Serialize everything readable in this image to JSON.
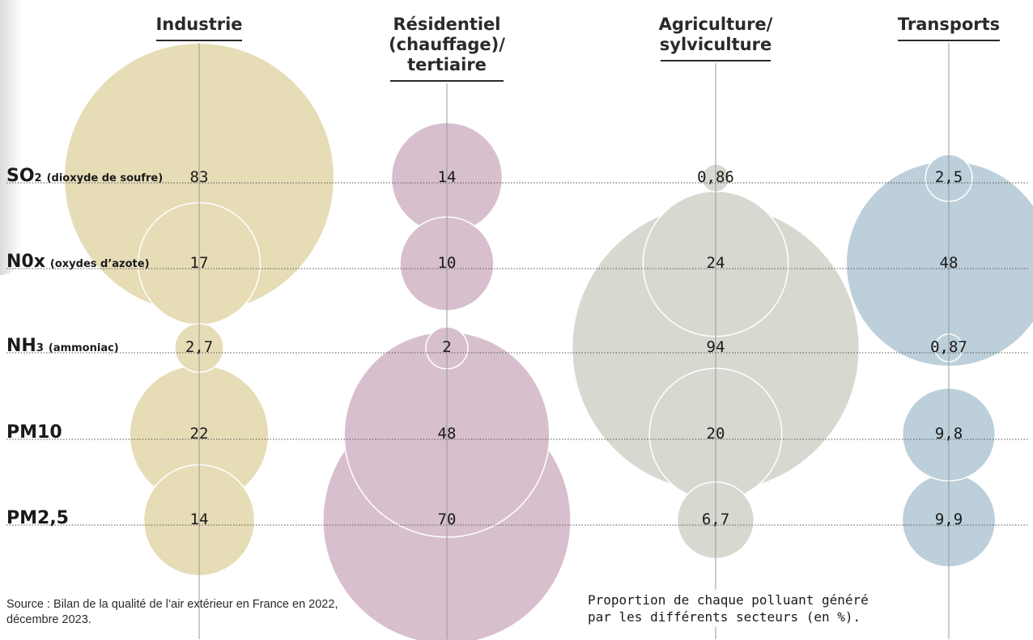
{
  "chart_data": {
    "type": "bubble",
    "title": "",
    "caption": "Proportion de chaque polluant généré\npar les différents secteurs (en %).",
    "source": "Source : Bilan de la qualité de l’air extérieur en France en 2022, décembre 2023.",
    "sectors": [
      {
        "label": "Industrie",
        "color": "#e6dcb6"
      },
      {
        "label": "Résidentiel\n(chauffage)/\ntertiaire",
        "color": "#d8bfcd"
      },
      {
        "label": "Agriculture/\nsylviculture",
        "color": "#d8d8d1"
      },
      {
        "label": "Transports",
        "color": "#bccfda"
      }
    ],
    "pollutants": [
      {
        "main": "SO",
        "sub": "2",
        "note": "(dioxyde de soufre)"
      },
      {
        "main": "N0x",
        "sub": "",
        "note": "(oxydes d’azote)"
      },
      {
        "main": "NH",
        "sub": "3",
        "note": "(ammoniac)"
      },
      {
        "main": "PM10",
        "sub": "",
        "note": ""
      },
      {
        "main": "PM2,5",
        "sub": "",
        "note": ""
      }
    ],
    "values": [
      {
        "text": [
          "83",
          "17",
          "2,7",
          "22",
          "14"
        ],
        "num": [
          83,
          17,
          2.7,
          22,
          14
        ]
      },
      {
        "text": [
          "14",
          "10",
          "2",
          "48",
          "70"
        ],
        "num": [
          14,
          10,
          2,
          48,
          70
        ]
      },
      {
        "text": [
          "0,86",
          "24",
          "94",
          "20",
          "6,7"
        ],
        "num": [
          0.86,
          24,
          94,
          20,
          6.7
        ]
      },
      {
        "text": [
          "2,5",
          "48",
          "0,87",
          "9,8",
          "9,9"
        ],
        "num": [
          2.5,
          48,
          0.87,
          9.8,
          9.9
        ]
      }
    ]
  }
}
